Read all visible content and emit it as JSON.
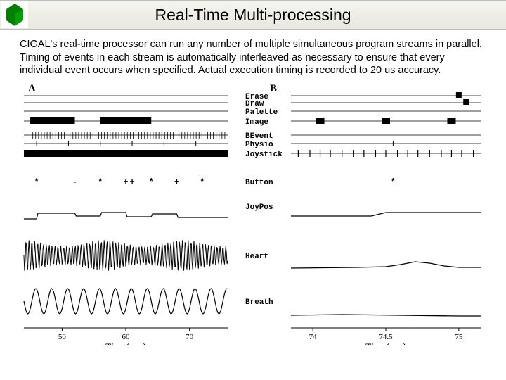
{
  "title": "Real-Time Multi-processing",
  "paragraph": "CIGAL's real-time processor can run any number of multiple simultaneous program streams in parallel.  Timing of events in each stream is automatically interleaved as necessary to ensure that every individual event occurs when specified. Actual execution timing is recorded to 20 us accuracy.",
  "colors": {
    "logo_green": "#008000",
    "black": "#000000",
    "bg": "#ffffff"
  },
  "figure": {
    "panel_A": {
      "label": "A",
      "xlabel": "Time (secs)",
      "xticks": [
        50,
        60,
        70
      ]
    },
    "panel_B": {
      "label": "B",
      "xlabel": "Time (secs)",
      "xticks": [
        74,
        74.5,
        75
      ]
    },
    "row_labels": [
      "Erase",
      "Draw",
      "Palette",
      "Image",
      "BEvent",
      "Physio",
      "Joystick",
      "Button",
      "JoyPos",
      "Heart",
      "Breath"
    ],
    "panelA_image_blocks": [
      [
        45,
        52
      ],
      [
        56,
        64
      ]
    ],
    "panelA_joystick_blocks": [
      [
        44,
        76
      ]
    ],
    "panelA_button_marks": [
      [
        46,
        "*"
      ],
      [
        52,
        "-"
      ],
      [
        56,
        "*"
      ],
      [
        60,
        "+"
      ],
      [
        61,
        "+"
      ],
      [
        64,
        "*"
      ],
      [
        68,
        "+"
      ],
      [
        72,
        "*"
      ]
    ],
    "panelA_joypos": [
      [
        44,
        18
      ],
      [
        46,
        18
      ],
      [
        46.2,
        10
      ],
      [
        52,
        10
      ],
      [
        52.2,
        14
      ],
      [
        56,
        14
      ],
      [
        56.2,
        9
      ],
      [
        60,
        9
      ],
      [
        60.2,
        15
      ],
      [
        64,
        15
      ],
      [
        64.2,
        11
      ],
      [
        68,
        11
      ],
      [
        68.2,
        16
      ],
      [
        76,
        16
      ]
    ],
    "heartA_freq": 2.2,
    "breathA_freq": 0.4,
    "panelB_erase_marks": [
      75.0
    ],
    "panelB_draw_marks": [
      75.05
    ],
    "panelB_image_marks": [
      74.05,
      74.5,
      74.95
    ],
    "panelB_joystick_marks": [
      73.9,
      73.98,
      74.05,
      74.12,
      74.2,
      74.28,
      74.35,
      74.43,
      74.5,
      74.58,
      74.65,
      74.72,
      74.8,
      74.88,
      74.95,
      75.02,
      75.1
    ],
    "panelB_button_marks": [
      [
        74.55,
        "*"
      ]
    ],
    "panelB_joypos": [
      [
        73.85,
        14
      ],
      [
        74.4,
        14
      ],
      [
        74.5,
        9
      ],
      [
        75.15,
        9
      ]
    ],
    "panelB_heart": [
      [
        73.85,
        18
      ],
      [
        74.3,
        17
      ],
      [
        74.5,
        16
      ],
      [
        74.6,
        13
      ],
      [
        74.7,
        9
      ],
      [
        74.8,
        11
      ],
      [
        74.9,
        15
      ],
      [
        75.0,
        17
      ],
      [
        75.15,
        17
      ]
    ],
    "panelB_breath": [
      [
        73.85,
        20
      ],
      [
        74.2,
        19
      ],
      [
        74.6,
        20
      ],
      [
        75.0,
        21
      ],
      [
        75.15,
        21
      ]
    ]
  }
}
